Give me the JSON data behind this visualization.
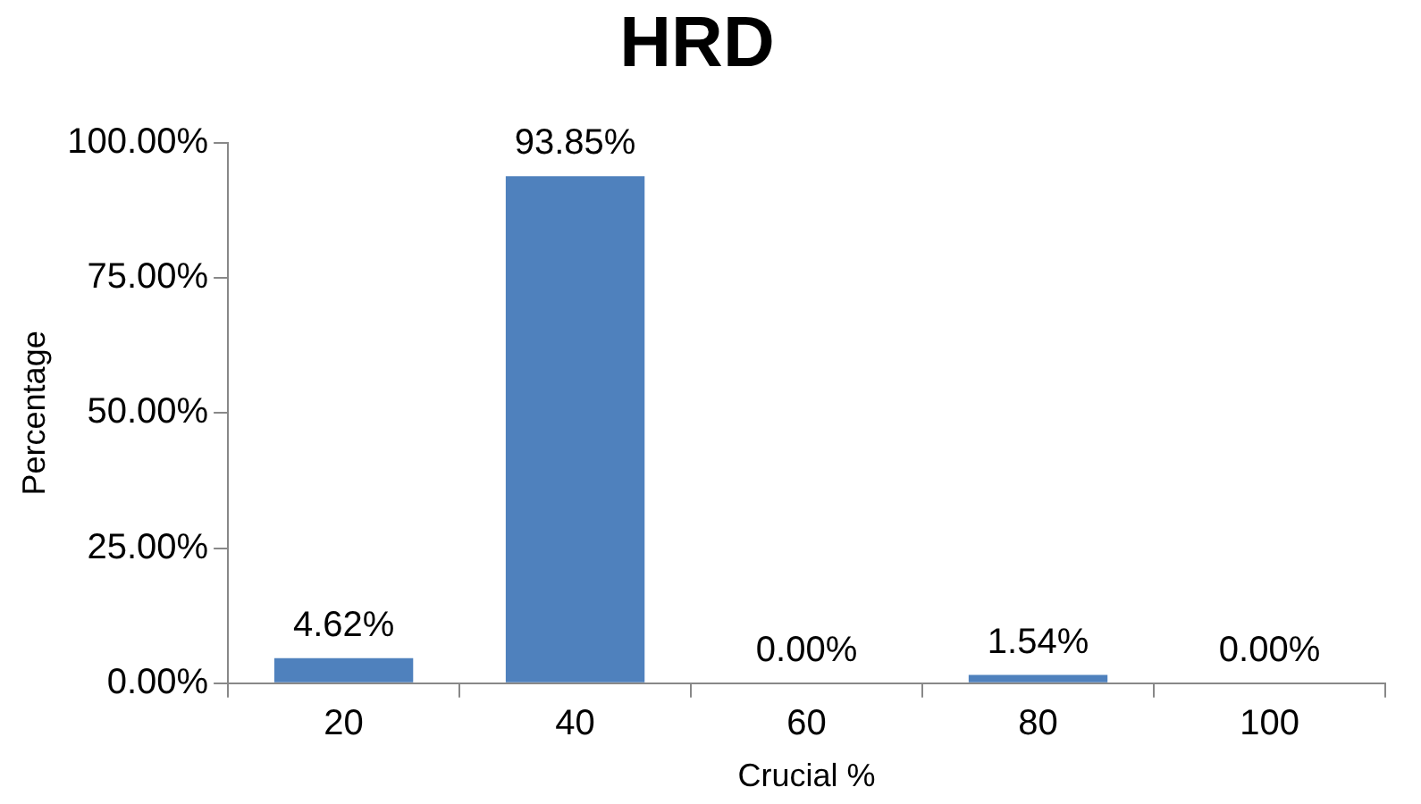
{
  "chart_data": {
    "type": "bar",
    "title": "HRD",
    "xlabel": "Crucial %",
    "ylabel": "Percentage",
    "categories": [
      "20",
      "40",
      "60",
      "80",
      "100"
    ],
    "values": [
      4.62,
      93.85,
      0,
      1.54,
      0
    ],
    "value_labels": [
      "4.62%",
      "93.85%",
      "0.00%",
      "1.54%",
      "0.00%"
    ],
    "color": "#4f81bd",
    "ylim": [
      0,
      100
    ],
    "yticks": [
      {
        "value": 0,
        "label": "0.00%"
      },
      {
        "value": 25,
        "label": "25.00%"
      },
      {
        "value": 50,
        "label": "50.00%"
      },
      {
        "value": 75,
        "label": "75.00%"
      },
      {
        "value": 100,
        "label": "100.00%"
      }
    ],
    "grid": false,
    "legend": false
  }
}
